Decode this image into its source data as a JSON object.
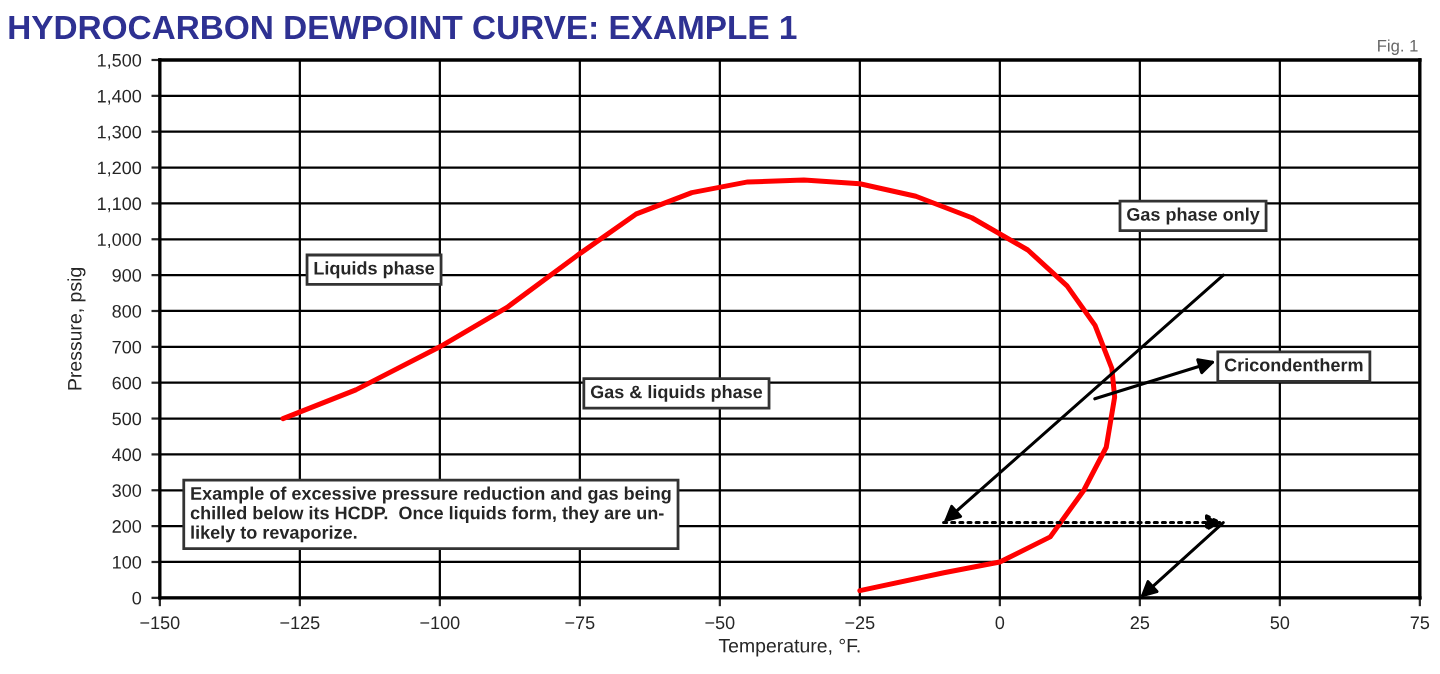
{
  "chart_data": {
    "type": "line",
    "title": "HYDROCARBON DEWPOINT CURVE: EXAMPLE 1",
    "xlabel": "Temperature, °F.",
    "ylabel": "Pressure, psig",
    "series": [
      {
        "color": "#ff0000",
        "x": [
          -128,
          -115,
          -100,
          -88,
          -75,
          -65,
          -55,
          -45,
          -35,
          -25,
          -15,
          -5,
          5,
          12,
          17,
          20,
          20.5,
          19,
          15,
          9,
          0,
          -10,
          -25
        ],
        "values": [
          500,
          580,
          700,
          810,
          960,
          1070,
          1130,
          1160,
          1165,
          1155,
          1120,
          1060,
          970,
          870,
          760,
          640,
          560,
          420,
          300,
          170,
          100,
          70,
          20
        ]
      }
    ],
    "annotations": [
      "Fig. 1",
      "Liquids phase",
      "Gas & liquids phase",
      "Gas phase only",
      "Cricondentherm",
      "Example of excessive pressure reduction and gas being\nchilled below its HCDP.  Once liquids form, they are un-\nlikely to revaporize."
    ],
    "xlim": [
      -150,
      75
    ],
    "xticks": [
      {
        "value": -150,
        "label": "−150"
      },
      {
        "value": -125,
        "label": "−125"
      },
      {
        "value": -100,
        "label": "−100"
      },
      {
        "value": -75,
        "label": "−75"
      },
      {
        "value": -50,
        "label": "−50"
      },
      {
        "value": -25,
        "label": "−25"
      },
      0,
      25,
      50,
      75
    ],
    "ylim": [
      0,
      1500
    ],
    "yticks": [
      0,
      100,
      200,
      300,
      400,
      500,
      600,
      700,
      800,
      900,
      {
        "value": 1000,
        "label": "1,000"
      },
      {
        "value": 1100,
        "label": "1,100"
      },
      {
        "value": 1200,
        "label": "1,200"
      },
      {
        "value": 1300,
        "label": "1,300"
      },
      {
        "value": 1400,
        "label": "1,400"
      },
      {
        "value": 1500,
        "label": "1,500"
      }
    ],
    "grid": true
  }
}
